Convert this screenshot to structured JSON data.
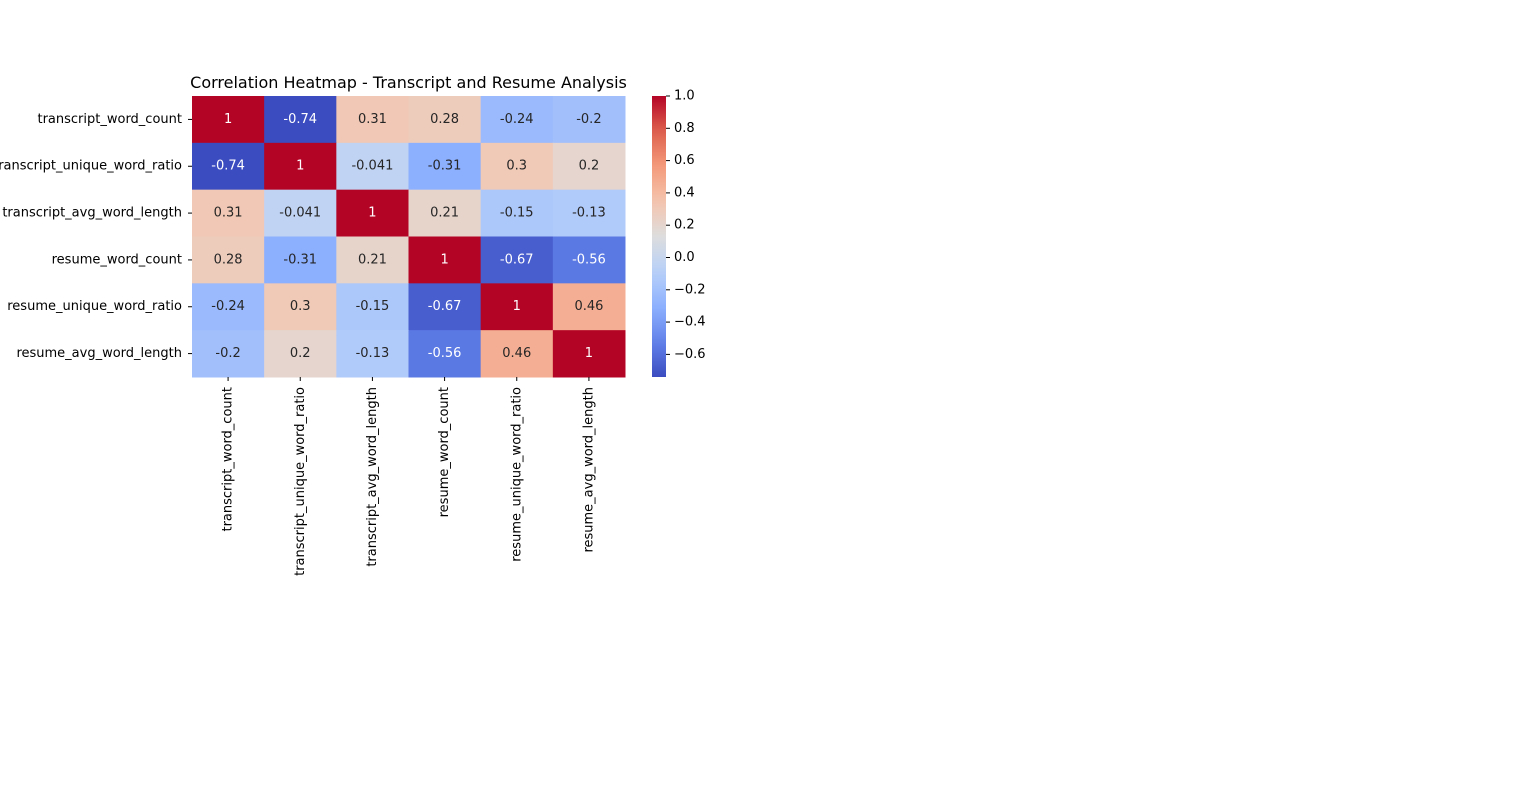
{
  "chart_data": {
    "type": "heatmap",
    "title": "Correlation Heatmap - Transcript and Resume Analysis",
    "row_labels": [
      "transcript_word_count",
      "transcript_unique_word_ratio",
      "transcript_avg_word_length",
      "resume_word_count",
      "resume_unique_word_ratio",
      "resume_avg_word_length"
    ],
    "col_labels": [
      "transcript_word_count",
      "transcript_unique_word_ratio",
      "transcript_avg_word_length",
      "resume_word_count",
      "resume_unique_word_ratio",
      "resume_avg_word_length"
    ],
    "values": [
      [
        1,
        -0.74,
        0.31,
        0.28,
        -0.24,
        -0.2
      ],
      [
        -0.74,
        1,
        -0.041,
        -0.31,
        0.3,
        0.2
      ],
      [
        0.31,
        -0.041,
        1,
        0.21,
        -0.15,
        -0.13
      ],
      [
        0.28,
        -0.31,
        0.21,
        1,
        -0.67,
        -0.56
      ],
      [
        -0.24,
        0.3,
        -0.15,
        -0.67,
        1,
        0.46
      ],
      [
        -0.2,
        0.2,
        -0.13,
        -0.56,
        0.46,
        1
      ]
    ],
    "annotations": [
      [
        "1",
        "-0.74",
        "0.31",
        "0.28",
        "-0.24",
        "-0.2"
      ],
      [
        "-0.74",
        "1",
        "-0.041",
        "-0.31",
        "0.3",
        "0.2"
      ],
      [
        "0.31",
        "-0.041",
        "1",
        "0.21",
        "-0.15",
        "-0.13"
      ],
      [
        "0.28",
        "-0.31",
        "0.21",
        "1",
        "-0.67",
        "-0.56"
      ],
      [
        "-0.24",
        "0.3",
        "-0.15",
        "-0.67",
        "1",
        "0.46"
      ],
      [
        "-0.2",
        "0.2",
        "-0.13",
        "-0.56",
        "0.46",
        "1"
      ]
    ],
    "colormap": "coolwarm",
    "vmin": -0.74,
    "vmax": 1.0,
    "colorbar": {
      "ticks": [
        1.0,
        0.8,
        0.6,
        0.4,
        0.2,
        0.0,
        -0.2,
        -0.4,
        -0.6
      ],
      "tick_labels": [
        "1.0",
        "0.8",
        "0.6",
        "0.4",
        "0.2",
        "0.0",
        "−0.2",
        "−0.4",
        "−0.6"
      ]
    },
    "colors": {
      "low": "#3b4cc0",
      "mid": "#dddddd",
      "high": "#b40426",
      "light_text": "#ffffff",
      "dark_text": "#262626"
    }
  }
}
